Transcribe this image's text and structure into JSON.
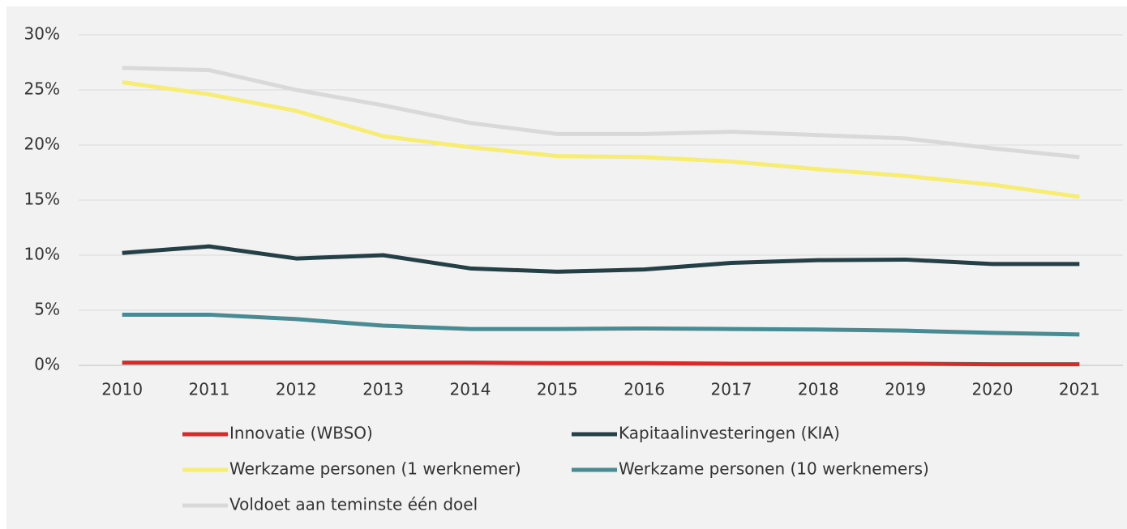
{
  "chart_data": {
    "type": "line",
    "categories": [
      "2010",
      "2011",
      "2012",
      "2013",
      "2014",
      "2015",
      "2016",
      "2017",
      "2018",
      "2019",
      "2020",
      "2021"
    ],
    "ylim": [
      0,
      30
    ],
    "yticks": [
      {
        "value": 0,
        "label": "0%"
      },
      {
        "value": 5,
        "label": "5%"
      },
      {
        "value": 10,
        "label": "10%"
      },
      {
        "value": 15,
        "label": "15%"
      },
      {
        "value": 20,
        "label": "20%"
      },
      {
        "value": 25,
        "label": "25%"
      },
      {
        "value": 30,
        "label": "30%"
      }
    ],
    "grid": true,
    "legend": "bottom",
    "series": [
      {
        "name": "Innovatie (WBSO)",
        "color": "#d62b2b",
        "values": [
          0.25,
          0.25,
          0.25,
          0.25,
          0.25,
          0.2,
          0.2,
          0.15,
          0.15,
          0.15,
          0.1,
          0.1
        ]
      },
      {
        "name": "Kapitaalinvesteringen (KIA)",
        "color": "#243f45",
        "values": [
          10.2,
          10.8,
          9.7,
          10.0,
          8.8,
          8.5,
          8.7,
          9.3,
          9.55,
          9.6,
          9.2,
          9.2
        ]
      },
      {
        "name": "Werkzame personen (1 werknemer)",
        "color": "#f7ec74",
        "values": [
          25.7,
          24.6,
          23.1,
          20.8,
          19.8,
          19.0,
          18.9,
          18.5,
          17.8,
          17.2,
          16.4,
          15.3
        ]
      },
      {
        "name": "Werkzame personen (10 werknemers)",
        "color": "#4a8a92",
        "values": [
          4.6,
          4.6,
          4.2,
          3.6,
          3.3,
          3.3,
          3.35,
          3.3,
          3.25,
          3.15,
          2.95,
          2.8
        ]
      },
      {
        "name": "Voldoet aan teminste één doel",
        "color": "#d9d9d9",
        "values": [
          27.0,
          26.8,
          25.0,
          23.6,
          22.0,
          21.0,
          21.0,
          21.2,
          20.9,
          20.6,
          19.7,
          18.9
        ]
      }
    ]
  }
}
